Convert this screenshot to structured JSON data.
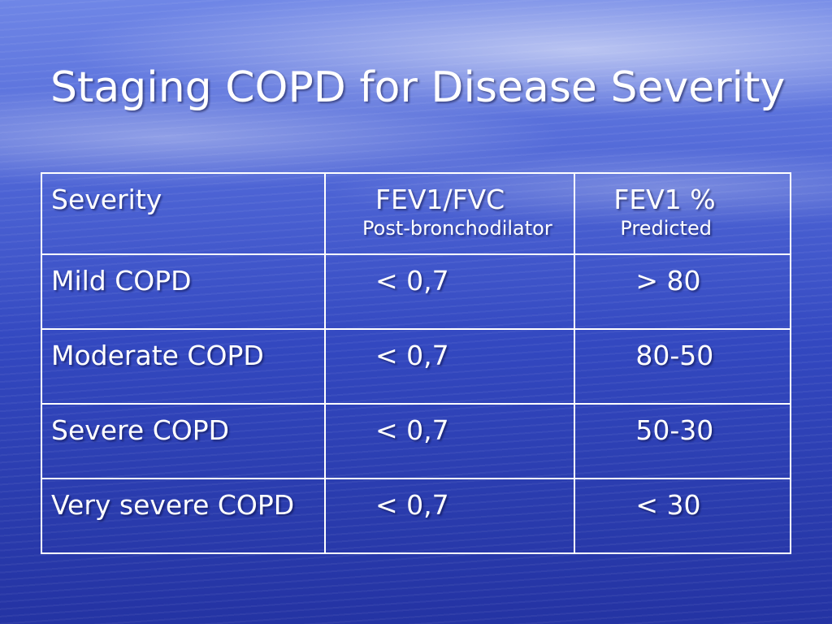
{
  "slide": {
    "title": "Staging COPD for Disease Severity"
  },
  "table": {
    "headers": [
      {
        "main": "Severity",
        "sub": ""
      },
      {
        "main": "FEV1/FVC",
        "sub": "Post-bronchodilator"
      },
      {
        "main": "FEV1 %",
        "sub": "Predicted"
      }
    ],
    "rows": [
      {
        "severity": "Mild COPD",
        "fev1_fvc": "< 0,7",
        "fev1_pct": "> 80"
      },
      {
        "severity": "Moderate COPD",
        "fev1_fvc": "< 0,7",
        "fev1_pct": "80-50"
      },
      {
        "severity": "Severe COPD",
        "fev1_fvc": "< 0,7",
        "fev1_pct": "50-30"
      },
      {
        "severity": "Very severe COPD",
        "fev1_fvc": "< 0,7",
        "fev1_pct": "< 30"
      }
    ]
  },
  "colors": {
    "background_top": "#6f86e6",
    "background_bottom": "#2433a3",
    "text": "#ffffff",
    "table_border": "#ffffff"
  }
}
